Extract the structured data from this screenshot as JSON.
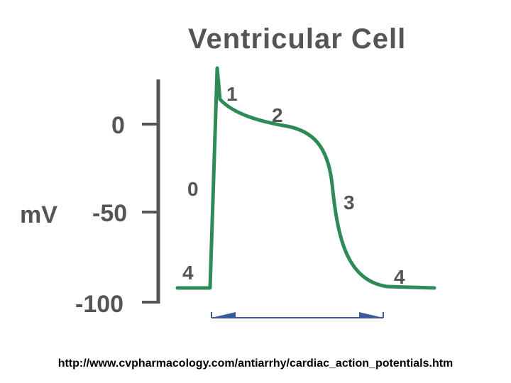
{
  "title": "Ventricular Cell",
  "y_axis": {
    "unit": "mV",
    "ticks": [
      {
        "value": 0,
        "label": "0"
      },
      {
        "value": -50,
        "label": "-50"
      },
      {
        "value": -100,
        "label": "-100"
      }
    ]
  },
  "phases": [
    {
      "id": "phase-1",
      "label": "1"
    },
    {
      "id": "phase-2",
      "label": "2"
    },
    {
      "id": "phase-0",
      "label": "0"
    },
    {
      "id": "phase-3",
      "label": "3"
    },
    {
      "id": "phase-4-left",
      "label": "4"
    },
    {
      "id": "phase-4-right",
      "label": "4"
    }
  ],
  "colors": {
    "trace": "#2e8b57",
    "axis": "#555555",
    "arrow": "#3b5a9a"
  },
  "source": "http://www.cvpharmacology.com/antiarrhy/cardiac_action_potentials.htm"
}
